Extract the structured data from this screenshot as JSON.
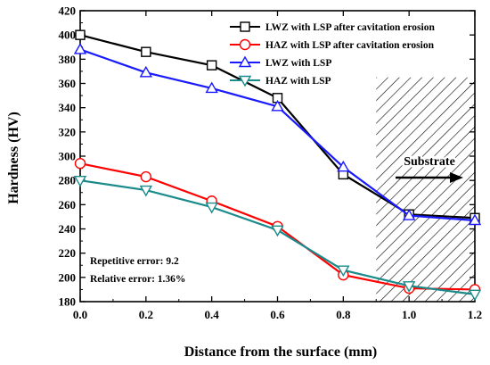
{
  "chart_data": {
    "type": "line",
    "xlabel": "Distance from the surface   (mm)",
    "ylabel": "Hardness  (HV)",
    "xlim": [
      0.0,
      1.2
    ],
    "ylim": [
      180,
      420
    ],
    "x_ticks": [
      "0.0",
      "0.2",
      "0.4",
      "0.6",
      "0.8",
      "1.0",
      "1.2"
    ],
    "y_ticks": [
      "180",
      "200",
      "220",
      "240",
      "260",
      "280",
      "300",
      "320",
      "340",
      "360",
      "380",
      "400",
      "420"
    ],
    "grid": false,
    "legend_position": "top-right",
    "series": [
      {
        "name": "LWZ with LSP after cavitation erosion",
        "color": "#000000",
        "marker": "square",
        "x": [
          0.0,
          0.2,
          0.4,
          0.6,
          0.8,
          1.0,
          1.2
        ],
        "values": [
          400,
          386,
          375,
          348,
          285,
          252,
          249
        ]
      },
      {
        "name": "HAZ with LSP after cavitation erosion",
        "color": "#ff0000",
        "marker": "circle",
        "x": [
          0.0,
          0.2,
          0.4,
          0.6,
          0.8,
          1.0,
          1.2
        ],
        "values": [
          294,
          283,
          263,
          242,
          202,
          191,
          190
        ]
      },
      {
        "name": "LWZ with LSP",
        "color": "#1a1aff",
        "marker": "triangle-up",
        "x": [
          0.0,
          0.2,
          0.4,
          0.6,
          0.8,
          1.0,
          1.2
        ],
        "values": [
          388,
          369,
          356,
          341,
          291,
          251,
          247
        ]
      },
      {
        "name": "HAZ with LSP",
        "color": "#1a8a8a",
        "marker": "triangle-down",
        "x": [
          0.0,
          0.2,
          0.4,
          0.6,
          0.8,
          1.0,
          1.2
        ],
        "values": [
          280,
          272,
          258,
          239,
          206,
          193,
          186
        ]
      }
    ],
    "annotations": {
      "repetitive_error": "Repetitive error: 9.2",
      "relative_error": "Relative error: 1.36%",
      "substrate_label": "Substrate",
      "substrate_region_x": [
        0.9,
        1.2
      ]
    }
  }
}
